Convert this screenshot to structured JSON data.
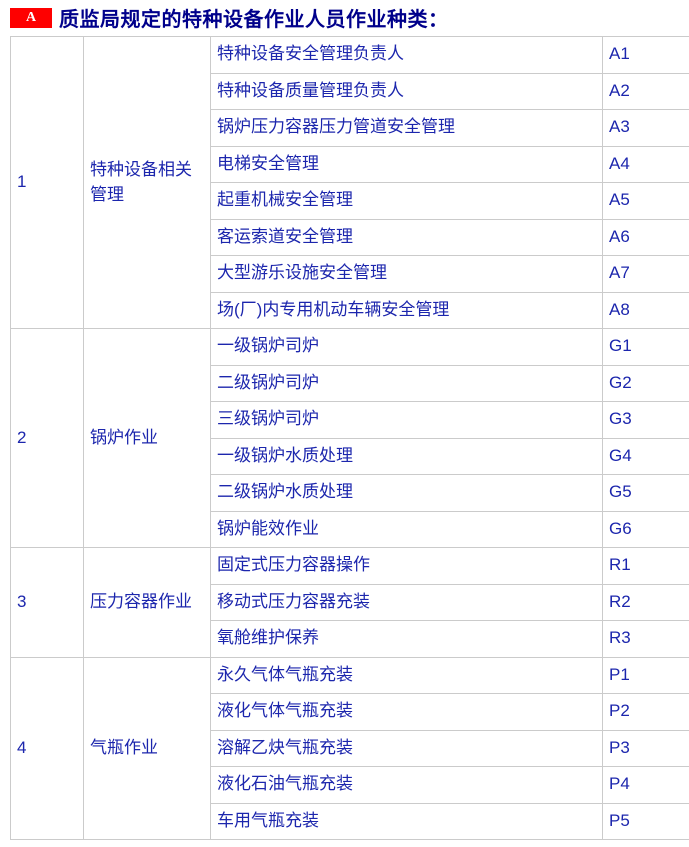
{
  "header": {
    "badge_label": "A",
    "title": "质监局规定的特种设备作业人员作业种类："
  },
  "table": {
    "groups": [
      {
        "no": "1",
        "category": "特种设备相关管理",
        "items": [
          {
            "name": "特种设备安全管理负责人",
            "code": "A1"
          },
          {
            "name": "特种设备质量管理负责人",
            "code": "A2"
          },
          {
            "name": "锅炉压力容器压力管道安全管理",
            "code": "A3"
          },
          {
            "name": "电梯安全管理",
            "code": "A4"
          },
          {
            "name": "起重机械安全管理",
            "code": "A5"
          },
          {
            "name": "客运索道安全管理",
            "code": "A6"
          },
          {
            "name": "大型游乐设施安全管理",
            "code": "A7"
          },
          {
            "name": "场(厂)内专用机动车辆安全管理",
            "code": "A8"
          }
        ]
      },
      {
        "no": "2",
        "category": "锅炉作业",
        "items": [
          {
            "name": "一级锅炉司炉",
            "code": "G1"
          },
          {
            "name": "二级锅炉司炉",
            "code": "G2"
          },
          {
            "name": "三级锅炉司炉",
            "code": "G3"
          },
          {
            "name": "一级锅炉水质处理",
            "code": "G4"
          },
          {
            "name": "二级锅炉水质处理",
            "code": "G5"
          },
          {
            "name": "锅炉能效作业",
            "code": "G6"
          }
        ]
      },
      {
        "no": "3",
        "category": "压力容器作业",
        "items": [
          {
            "name": "固定式压力容器操作",
            "code": "R1"
          },
          {
            "name": "移动式压力容器充装",
            "code": "R2"
          },
          {
            "name": "氧舱维护保养",
            "code": "R3"
          }
        ]
      },
      {
        "no": "4",
        "category": "气瓶作业",
        "items": [
          {
            "name": "永久气体气瓶充装",
            "code": "P1"
          },
          {
            "name": "液化气体气瓶充装",
            "code": "P2"
          },
          {
            "name": "溶解乙炔气瓶充装",
            "code": "P3"
          },
          {
            "name": "液化石油气瓶充装",
            "code": "P4"
          },
          {
            "name": "车用气瓶充装",
            "code": "P5"
          }
        ]
      }
    ]
  },
  "colors": {
    "accent_red": "#fe0000",
    "title_blue": "#00008b",
    "text_blue": "#1c26ad",
    "border_gray": "#cbcbcb"
  }
}
